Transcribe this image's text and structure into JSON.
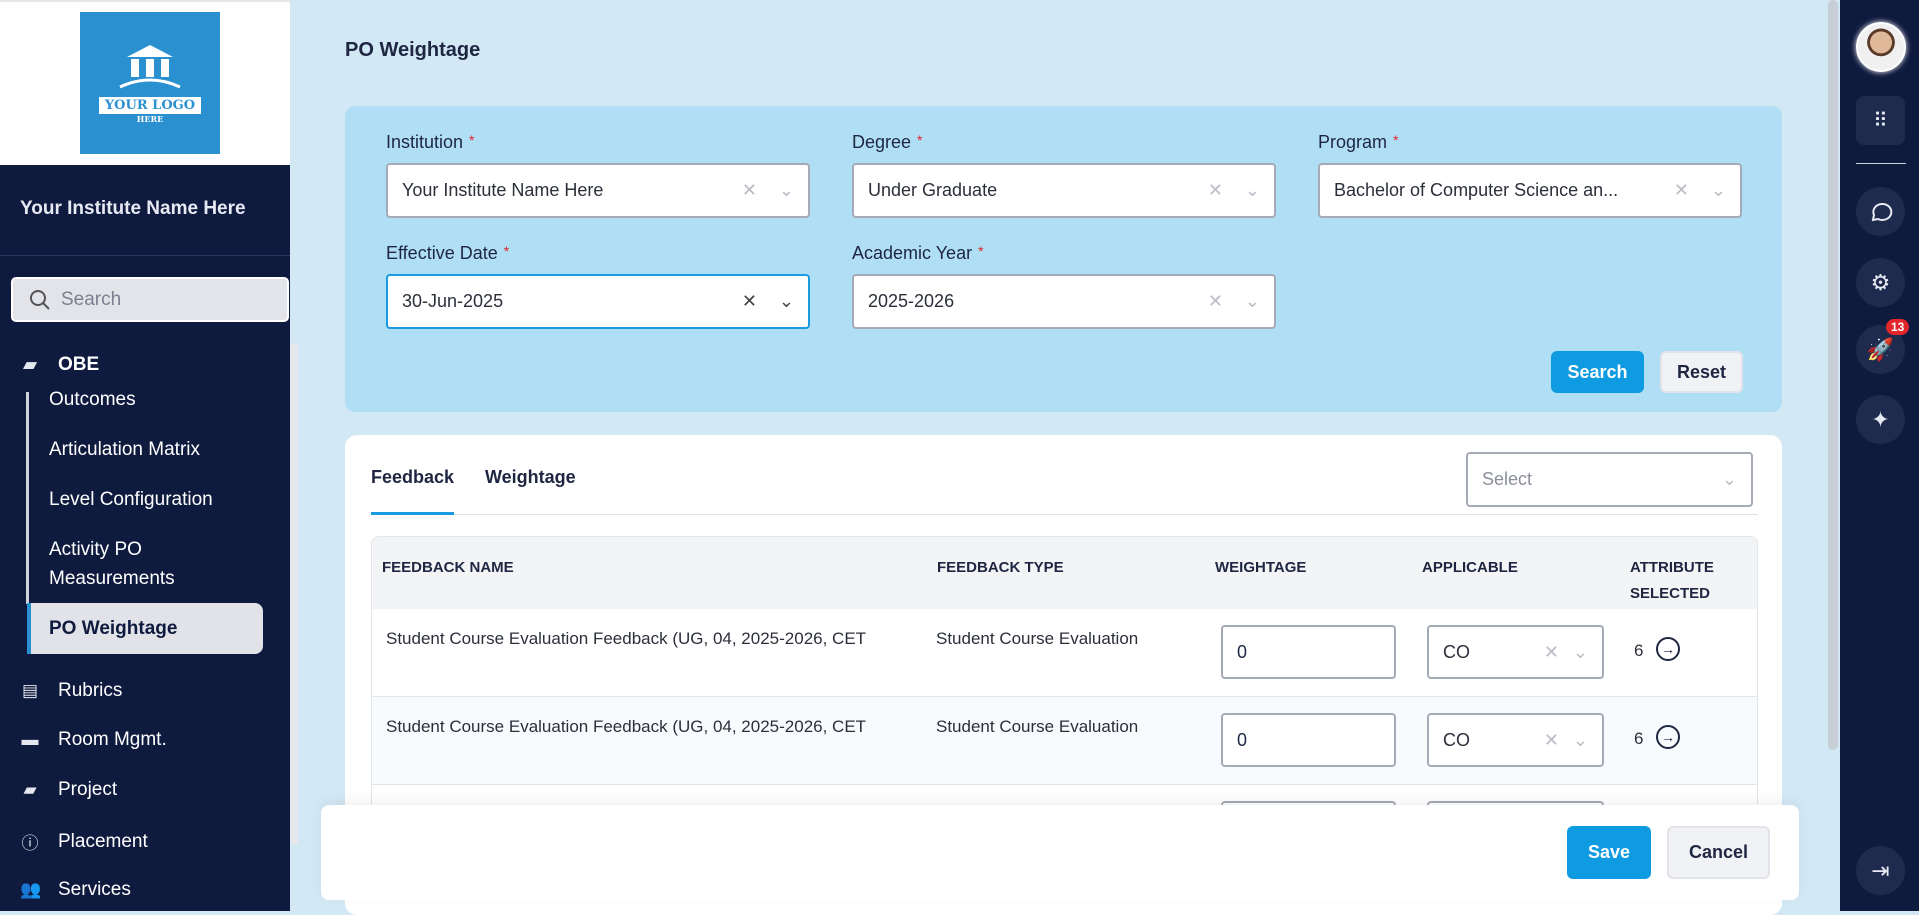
{
  "sidebar": {
    "logo_text_1": "YOUR LOGO",
    "logo_text_2": "HERE",
    "institute_name": "Your Institute Name Here",
    "search_placeholder": "Search",
    "section": "OBE",
    "sub_items": [
      "Outcomes",
      "Articulation Matrix",
      "Level Configuration",
      "Activity PO",
      "Measurements"
    ],
    "active_item": "PO Weightage",
    "items": [
      "Rubrics",
      "Room Mgmt.",
      "Project",
      "Placement",
      "Services"
    ]
  },
  "page": {
    "title": "PO Weightage"
  },
  "filters": {
    "institution": {
      "label": "Institution",
      "value": "Your Institute Name Here"
    },
    "degree": {
      "label": "Degree",
      "value": "Under Graduate"
    },
    "program": {
      "label": "Program",
      "value": "Bachelor of Computer Science an..."
    },
    "effective_date": {
      "label": "Effective Date",
      "value": "30-Jun-2025"
    },
    "academic_year": {
      "label": "Academic Year",
      "value": "2025-2026"
    },
    "required_mark": "*",
    "search_label": "Search",
    "reset_label": "Reset"
  },
  "tabs": [
    "Feedback",
    "Weightage"
  ],
  "active_tab": "Feedback",
  "select_placeholder": "Select",
  "table": {
    "headers": [
      "FEEDBACK NAME",
      "FEEDBACK TYPE",
      "WEIGHTAGE",
      "APPLICABLE",
      "ATTRIBUTE",
      "SELECTED"
    ],
    "rows": [
      {
        "name": "Student Course Evaluation Feedback (UG, 04, 2025-2026, CET",
        "type": "Student Course Evaluation",
        "weightage": "0",
        "applicable": "CO",
        "attributes": "6"
      },
      {
        "name": "Student Course Evaluation Feedback (UG, 04, 2025-2026, CET",
        "type": "Student Course Evaluation",
        "weightage": "0",
        "applicable": "CO",
        "attributes": "6"
      }
    ]
  },
  "footer": {
    "save_label": "Save",
    "cancel_label": "Cancel"
  },
  "rail": {
    "notification_count": "13"
  },
  "colors": {
    "sidebar": "#0f1a3f",
    "accent": "#0e9be2",
    "filter_panel": "#b0def4",
    "badge": "#e3262b"
  }
}
